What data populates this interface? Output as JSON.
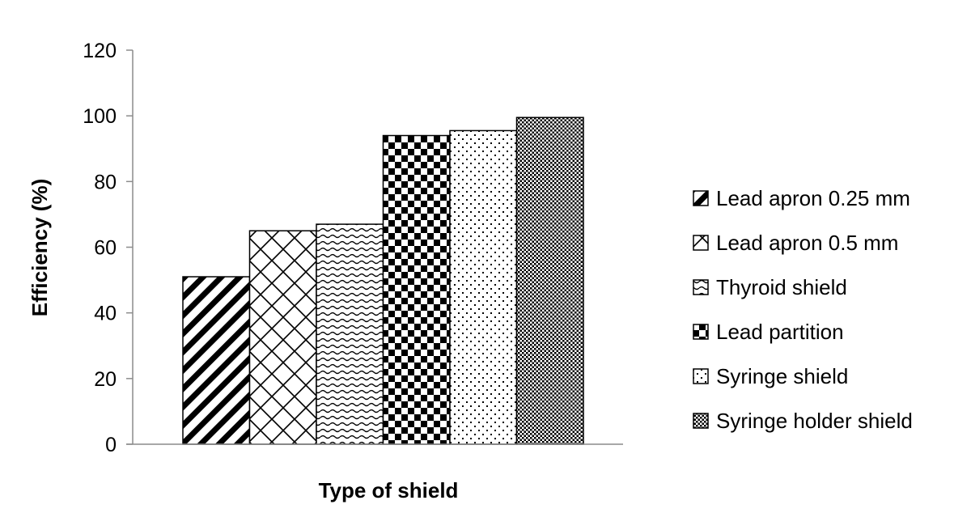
{
  "chart_data": {
    "type": "bar",
    "title": "",
    "xlabel": "Type of shield",
    "ylabel": "Efficiency (%)",
    "ylim": [
      0,
      120
    ],
    "yticks": [
      0,
      20,
      40,
      60,
      80,
      100,
      120
    ],
    "grid": false,
    "legend_position": "right",
    "series": [
      {
        "name": "Lead apron 0.25 mm",
        "value": 51,
        "pattern": "diagonal-stripes"
      },
      {
        "name": "Lead apron 0.5 mm",
        "value": 65,
        "pattern": "diamond-lattice"
      },
      {
        "name": "Thyroid shield",
        "value": 67,
        "pattern": "wavy-lines"
      },
      {
        "name": "Lead partition",
        "value": 94,
        "pattern": "checkerboard"
      },
      {
        "name": "Syringe shield",
        "value": 95.5,
        "pattern": "sparse-dots"
      },
      {
        "name": "Syringe holder shield",
        "value": 99.5,
        "pattern": "dense-dots"
      }
    ]
  }
}
